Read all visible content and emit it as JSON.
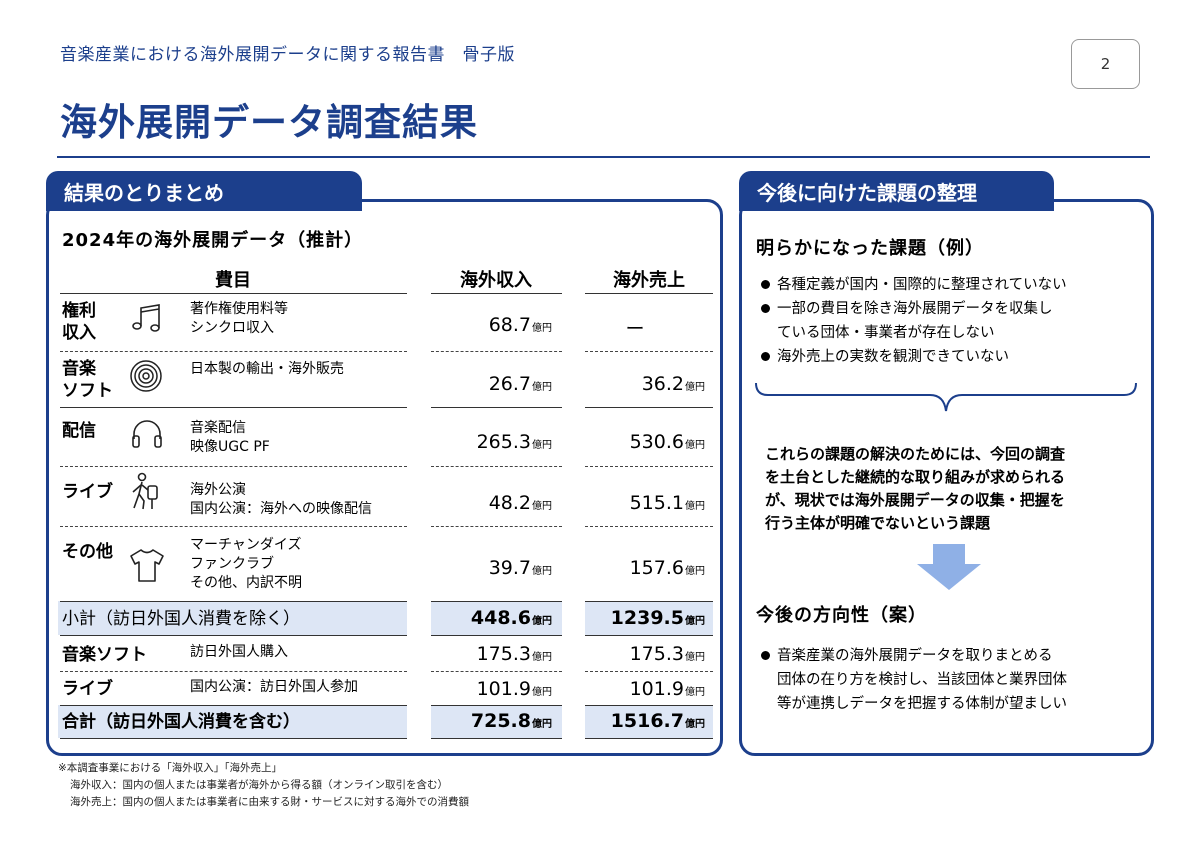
{
  "header": {
    "subtitle": "音楽産業における海外展開データに関する報告書　骨子版",
    "page_number": "2",
    "title": "海外展開データ調査結果"
  },
  "left_panel": {
    "tab_label": "結果のとりまとめ",
    "section_title": "2024年の海外展開データ（推計）",
    "columns": {
      "category": "費目",
      "income": "海外収入",
      "sales": "海外売上"
    },
    "unit": "億円",
    "rows": [
      {
        "category": "権利\n収入",
        "icon": "music-note-icon",
        "items": "著作権使用料等\nシンクロ収入",
        "income": "68.7",
        "sales": "ー"
      },
      {
        "category": "音楽\nソフト",
        "icon": "disc-icon",
        "items": "日本製の輸出・海外販売",
        "income": "26.7",
        "sales": "36.2"
      },
      {
        "category": "配信",
        "icon": "headphones-icon",
        "items": "音楽配信\n映像UGC PF",
        "income": "265.3",
        "sales": "530.6"
      },
      {
        "category": "ライブ",
        "icon": "traveler-icon",
        "items": "海外公演\n国内公演：海外への映像配信",
        "income": "48.2",
        "sales": "515.1"
      },
      {
        "category": "その他",
        "icon": "tshirt-icon",
        "items": "マーチャンダイズ\nファンクラブ\nその他、内訳不明",
        "income": "39.7",
        "sales": "157.6"
      }
    ],
    "subtotal": {
      "label": "小計（訪日外国人消費を除く）",
      "income": "448.6",
      "sales": "1239.5"
    },
    "inbound_rows": [
      {
        "category": "音楽ソフト",
        "items": "訪日外国人購入",
        "income": "175.3",
        "sales": "175.3"
      },
      {
        "category": "ライブ",
        "items": "国内公演：訪日外国人参加",
        "income": "101.9",
        "sales": "101.9"
      }
    ],
    "total": {
      "label": "合計（訪日外国人消費を含む）",
      "income": "725.8",
      "sales": "1516.7"
    }
  },
  "right_panel": {
    "tab_label": "今後に向けた課題の整理",
    "issues_title": "明らかになった課題（例）",
    "issues": [
      "各種定義が国内・国際的に整理されていない",
      "一部の費目を除き海外展開データを収集し\nている団体・事業者が存在しない",
      "海外売上の実数を観測できていない"
    ],
    "summary": "これらの課題の解決のためには、今回の調査\nを土台とした継続的な取り組みが求められる\nが、現状では海外展開データの収集・把握を\n行う主体が明確でないという課題",
    "direction_title": "今後の方向性（案）",
    "direction": "音楽産業の海外展開データを取りまとめる\n団体の在り方を検討し、当該団体と業界団体\n等が連携しデータを把握する体制が望ましい"
  },
  "footnotes": [
    "※本調査事業における「海外収入」「海外売上」",
    "海外収入：国内の個人または事業者が海外から得る額（オンライン取引を含む）",
    "海外売上：国内の個人または事業者に由来する財・サービスに対する海外での消費額"
  ],
  "colors": {
    "brand": "#1c3f8c",
    "highlight": "#dde6f5",
    "arrow": "#8fb0e6"
  }
}
